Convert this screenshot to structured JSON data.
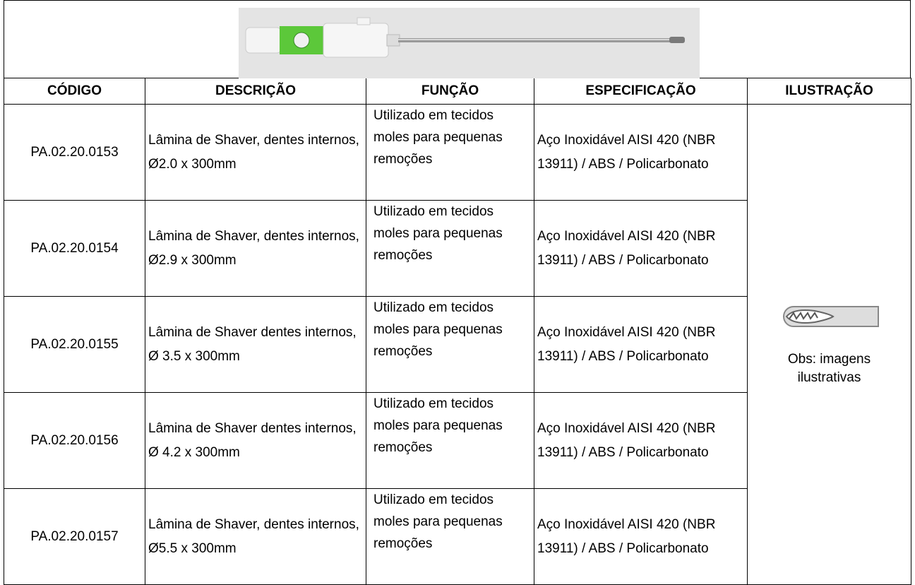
{
  "table": {
    "headers": [
      "CÓDIGO",
      "DESCRIÇÃO",
      "FUNÇÃO",
      "ESPECIFICAÇÃO",
      "ILUSTRAÇÃO"
    ],
    "rows": [
      [
        "PA.02.20.0153",
        "Lâmina de Shaver, dentes internos, Ø2.0 x 300mm",
        "Utilizado em tecidos moles para pequenas remoções",
        "Aço Inoxidável AISI 420 (NBR 13911) / ABS / Policarbonato"
      ],
      [
        "PA.02.20.0154",
        "Lâmina de Shaver, dentes internos, Ø2.9 x 300mm",
        "Utilizado em tecidos moles para pequenas remoções",
        "Aço Inoxidável AISI 420 (NBR 13911) / ABS / Policarbonato"
      ],
      [
        "PA.02.20.0155",
        "Lâmina de Shaver dentes internos, Ø 3.5 x 300mm",
        "Utilizado em tecidos moles para pequenas remoções",
        "Aço Inoxidável AISI 420 (NBR 13911) / ABS / Policarbonato"
      ],
      [
        "PA.02.20.0156",
        "Lâmina de Shaver dentes internos, Ø 4.2 x 300mm",
        "Utilizado em tecidos moles para pequenas remoções",
        "Aço Inoxidável AISI 420 (NBR 13911) / ABS / Policarbonato"
      ],
      [
        "PA.02.20.0157",
        "Lâmina de Shaver, dentes internos, Ø5.5 x 300mm",
        "Utilizado em tecidos moles para pequenas remoções",
        "Aço Inoxidável AISI 420 (NBR 13911) / ABS / Policarbonato"
      ]
    ],
    "illustration_note": "Obs: imagens ilustrativas"
  }
}
